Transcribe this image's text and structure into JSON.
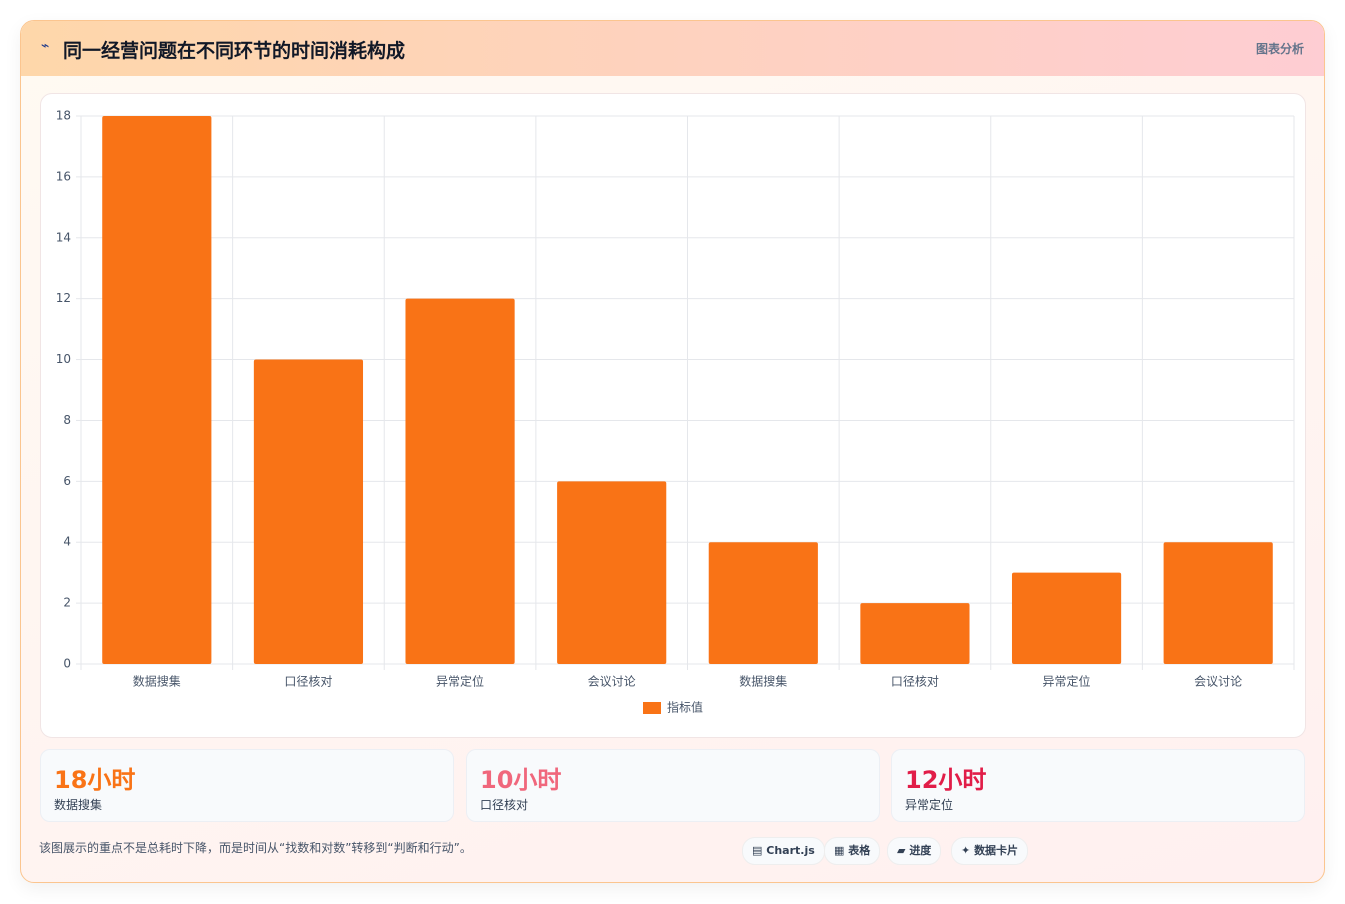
{
  "header": {
    "icon": "⌁",
    "title": "同一经营问题在不同环节的时间消耗构成",
    "tag": "图表分析"
  },
  "chart_data": {
    "type": "bar",
    "categories": [
      "数据搜集",
      "口径核对",
      "异常定位",
      "会议讨论",
      "数据搜集",
      "口径核对",
      "异常定位",
      "会议讨论"
    ],
    "series": [
      {
        "name": "指标值",
        "color": "#f97316",
        "values": [
          18,
          10,
          12,
          6,
          4,
          2,
          3,
          4
        ]
      }
    ],
    "ylim": [
      0,
      18
    ],
    "yticks": [
      0,
      2,
      4,
      6,
      8,
      10,
      12,
      14,
      16,
      18
    ],
    "grid": true,
    "legend": "bottom"
  },
  "stats": [
    {
      "value": "18小时",
      "label": "数据搜集"
    },
    {
      "value": "10小时",
      "label": "口径核对"
    },
    {
      "value": "12小时",
      "label": "异常定位"
    }
  ],
  "footer": {
    "note": "该图展示的重点不是总耗时下降，而是时间从“找数和对数”转移到“判断和行动”。",
    "chips": [
      {
        "icon": "▤",
        "label": "Chart.js"
      },
      {
        "icon": "▦",
        "label": "表格"
      },
      {
        "icon": "▰",
        "label": "进度"
      },
      {
        "icon": "✦",
        "label": "数据卡片"
      }
    ]
  }
}
